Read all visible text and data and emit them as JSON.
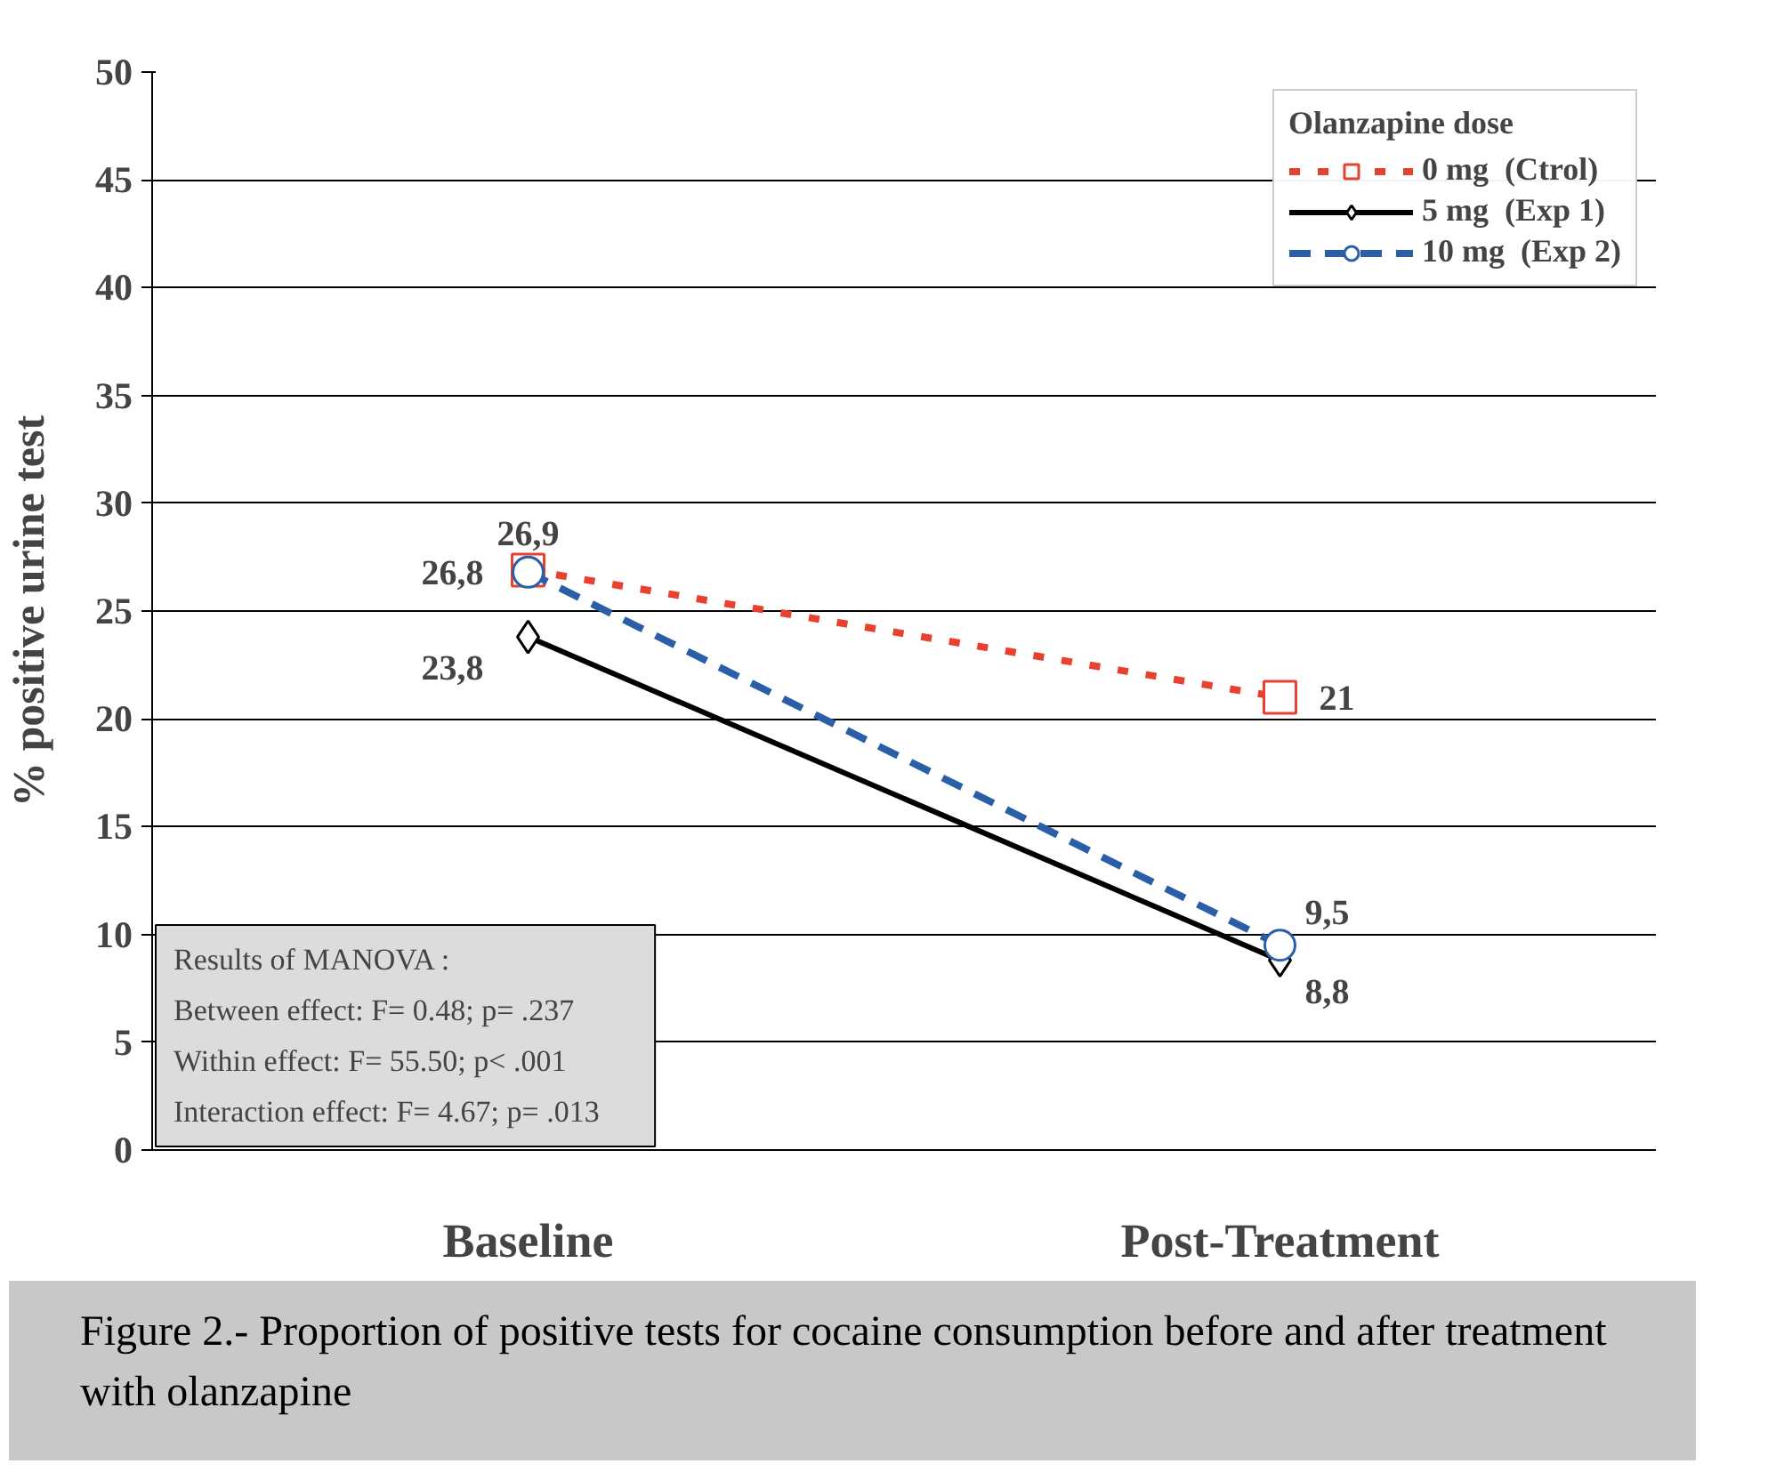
{
  "chart_data": {
    "type": "line",
    "ylabel": "% positive urine test",
    "categories": [
      "Baseline",
      "Post-Treatment"
    ],
    "ylim": [
      0,
      50
    ],
    "yticks": [
      0,
      5,
      10,
      15,
      20,
      25,
      30,
      35,
      40,
      45,
      50
    ],
    "grid": "y",
    "legend": "top right",
    "legend_title": "Olanzapine dose",
    "series": [
      {
        "name": "0 mg  (Ctrol)",
        "color": "#e8412f",
        "values": [
          26.9,
          21
        ],
        "value_labels": [
          "26,9",
          "21"
        ],
        "marker": "square",
        "line_style": "dotted"
      },
      {
        "name": "5 mg  (Exp 1)",
        "color": "#000000",
        "values": [
          23.8,
          8.8
        ],
        "value_labels": [
          "23,8",
          "8,8"
        ],
        "marker": "diamond",
        "line_style": "solid"
      },
      {
        "name": "10 mg  (Exp 2)",
        "color": "#2a5fa8",
        "values": [
          26.8,
          9.5
        ],
        "value_labels": [
          "26,8",
          "9,5"
        ],
        "marker": "circle",
        "line_style": "dashed"
      }
    ],
    "annotations": [
      "Results of MANOVA :",
      "Between effect:   F=  0.48;   p= .237",
      "Within effect:   F= 55.50;   p< .001",
      "Interaction effect:   F=  4.67;   p= .013",
      "Figure 2.- Proportion of positive tests for cocaine consumption before and after treatment with olanzapine"
    ]
  }
}
